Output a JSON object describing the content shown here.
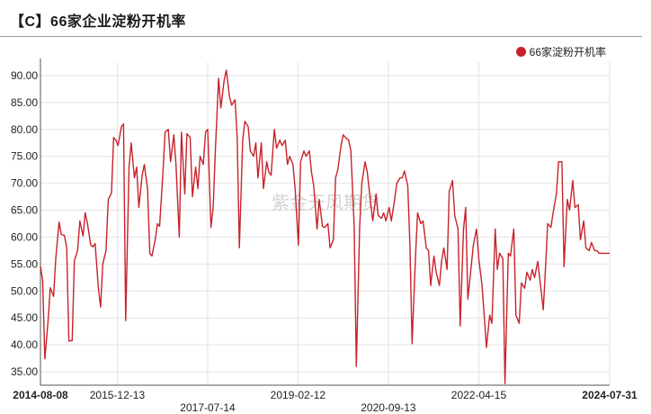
{
  "title": "【C】66家企业淀粉开机率",
  "watermark": "紫金天风期货",
  "colors": {
    "series": "#c8222a",
    "grid": "#e3e3e3",
    "axis": "#555555"
  },
  "chart_data": {
    "type": "line",
    "grid": true,
    "legend_position": "top-right",
    "ylim": [
      32.5,
      92.5
    ],
    "yticks": [
      "35.00",
      "40.00",
      "45.00",
      "50.00",
      "55.00",
      "60.00",
      "65.00",
      "70.00",
      "75.00",
      "80.00",
      "85.00",
      "90.00"
    ],
    "xrange": [
      "2014-08-08",
      "2024-07-31"
    ],
    "xticks": [
      {
        "label": "2014-08-08",
        "date": "2014-08-08",
        "row": 0,
        "bold": true
      },
      {
        "label": "2015-12-13",
        "date": "2015-12-13",
        "row": 0,
        "bold": false
      },
      {
        "label": "2017-07-14",
        "date": "2017-07-14",
        "row": 1,
        "bold": false
      },
      {
        "label": "2019-02-12",
        "date": "2019-02-12",
        "row": 0,
        "bold": false
      },
      {
        "label": "2020-09-13",
        "date": "2020-09-13",
        "row": 1,
        "bold": false
      },
      {
        "label": "2022-04-15",
        "date": "2022-04-15",
        "row": 0,
        "bold": false
      },
      {
        "label": "2024-07-31",
        "date": "2024-07-31",
        "row": 0,
        "bold": true
      }
    ],
    "series": [
      {
        "name": "66家淀粉开机率",
        "points": [
          [
            "2014-08-08",
            54.6
          ],
          [
            "2014-08-22",
            52.0
          ],
          [
            "2014-09-05",
            37.4
          ],
          [
            "2014-09-26",
            44.5
          ],
          [
            "2014-10-10",
            50.6
          ],
          [
            "2014-10-31",
            49.0
          ],
          [
            "2014-11-14",
            56.0
          ],
          [
            "2014-12-05",
            62.8
          ],
          [
            "2014-12-19",
            60.5
          ],
          [
            "2015-01-09",
            60.3
          ],
          [
            "2015-01-23",
            58.0
          ],
          [
            "2015-02-06",
            40.7
          ],
          [
            "2015-02-27",
            40.8
          ],
          [
            "2015-03-13",
            55.6
          ],
          [
            "2015-04-03",
            57.5
          ],
          [
            "2015-04-17",
            63.0
          ],
          [
            "2015-05-08",
            60.2
          ],
          [
            "2015-05-22",
            64.5
          ],
          [
            "2015-06-05",
            62.5
          ],
          [
            "2015-06-26",
            58.5
          ],
          [
            "2015-07-10",
            58.2
          ],
          [
            "2015-07-24",
            58.8
          ],
          [
            "2015-08-14",
            50.5
          ],
          [
            "2015-08-28",
            47.0
          ],
          [
            "2015-09-11",
            55.0
          ],
          [
            "2015-10-02",
            57.5
          ],
          [
            "2015-10-16",
            67.0
          ],
          [
            "2015-11-06",
            68.2
          ],
          [
            "2015-11-20",
            78.5
          ],
          [
            "2015-12-04",
            78.0
          ],
          [
            "2015-12-18",
            77.0
          ],
          [
            "2016-01-08",
            80.5
          ],
          [
            "2016-01-22",
            81.0
          ],
          [
            "2016-02-05",
            44.5
          ],
          [
            "2016-02-26",
            73.0
          ],
          [
            "2016-03-11",
            77.5
          ],
          [
            "2016-04-01",
            71.0
          ],
          [
            "2016-04-15",
            73.0
          ],
          [
            "2016-04-29",
            65.5
          ],
          [
            "2016-05-20",
            71.5
          ],
          [
            "2016-06-03",
            73.5
          ],
          [
            "2016-06-24",
            69.0
          ],
          [
            "2016-07-08",
            57.0
          ],
          [
            "2016-07-22",
            56.5
          ],
          [
            "2016-08-12",
            59.5
          ],
          [
            "2016-08-26",
            62.5
          ],
          [
            "2016-09-09",
            62.0
          ],
          [
            "2016-09-30",
            72.0
          ],
          [
            "2016-10-14",
            79.5
          ],
          [
            "2016-11-04",
            80.0
          ],
          [
            "2016-11-18",
            74.0
          ],
          [
            "2016-12-09",
            79.0
          ],
          [
            "2016-12-23",
            73.5
          ],
          [
            "2017-01-13",
            60.0
          ],
          [
            "2017-01-27",
            79.5
          ],
          [
            "2017-02-17",
            68.0
          ],
          [
            "2017-03-03",
            79.2
          ],
          [
            "2017-03-24",
            78.5
          ],
          [
            "2017-04-07",
            67.5
          ],
          [
            "2017-04-28",
            73.0
          ],
          [
            "2017-05-12",
            69.0
          ],
          [
            "2017-05-26",
            75.0
          ],
          [
            "2017-06-16",
            73.5
          ],
          [
            "2017-06-30",
            79.5
          ],
          [
            "2017-07-14",
            80.0
          ],
          [
            "2017-08-04",
            61.8
          ],
          [
            "2017-08-18",
            65.5
          ],
          [
            "2017-09-01",
            76.0
          ],
          [
            "2017-09-22",
            89.5
          ],
          [
            "2017-10-06",
            84.0
          ],
          [
            "2017-10-27",
            89.0
          ],
          [
            "2017-11-10",
            91.0
          ],
          [
            "2017-12-01",
            86.0
          ],
          [
            "2017-12-15",
            84.5
          ],
          [
            "2018-01-05",
            85.5
          ],
          [
            "2018-01-19",
            78.5
          ],
          [
            "2018-02-02",
            58.0
          ],
          [
            "2018-02-23",
            78.0
          ],
          [
            "2018-03-09",
            81.5
          ],
          [
            "2018-03-30",
            80.5
          ],
          [
            "2018-04-13",
            76.0
          ],
          [
            "2018-05-04",
            75.0
          ],
          [
            "2018-05-18",
            77.5
          ],
          [
            "2018-06-01",
            71.0
          ],
          [
            "2018-06-22",
            77.5
          ],
          [
            "2018-07-06",
            69.0
          ],
          [
            "2018-07-27",
            74.0
          ],
          [
            "2018-08-10",
            72.0
          ],
          [
            "2018-08-24",
            71.5
          ],
          [
            "2018-09-14",
            80.0
          ],
          [
            "2018-09-28",
            76.5
          ],
          [
            "2018-10-19",
            78.0
          ],
          [
            "2018-11-02",
            77.0
          ],
          [
            "2018-11-23",
            78.0
          ],
          [
            "2018-12-07",
            73.5
          ],
          [
            "2018-12-21",
            75.0
          ],
          [
            "2019-01-11",
            73.5
          ],
          [
            "2019-01-25",
            69.0
          ],
          [
            "2019-02-15",
            58.5
          ],
          [
            "2019-03-01",
            74.0
          ],
          [
            "2019-03-22",
            76.0
          ],
          [
            "2019-04-05",
            75.0
          ],
          [
            "2019-04-26",
            76.0
          ],
          [
            "2019-05-10",
            72.0
          ],
          [
            "2019-05-24",
            69.5
          ],
          [
            "2019-06-14",
            61.5
          ],
          [
            "2019-06-28",
            67.0
          ],
          [
            "2019-07-19",
            62.0
          ],
          [
            "2019-08-02",
            61.8
          ],
          [
            "2019-08-23",
            62.5
          ],
          [
            "2019-09-06",
            58.0
          ],
          [
            "2019-09-27",
            59.5
          ],
          [
            "2019-10-11",
            71.0
          ],
          [
            "2019-10-25",
            72.5
          ],
          [
            "2019-11-15",
            77.0
          ],
          [
            "2019-11-29",
            79.0
          ],
          [
            "2019-12-13",
            78.5
          ],
          [
            "2020-01-03",
            78.0
          ],
          [
            "2020-01-17",
            76.0
          ],
          [
            "2020-02-07",
            62.0
          ],
          [
            "2020-02-21",
            36.0
          ],
          [
            "2020-03-13",
            62.0
          ],
          [
            "2020-03-27",
            70.0
          ],
          [
            "2020-04-17",
            74.0
          ],
          [
            "2020-05-01",
            72.0
          ],
          [
            "2020-05-22",
            66.5
          ],
          [
            "2020-06-05",
            63.0
          ],
          [
            "2020-06-26",
            68.0
          ],
          [
            "2020-07-10",
            64.0
          ],
          [
            "2020-07-31",
            63.5
          ],
          [
            "2020-08-14",
            64.5
          ],
          [
            "2020-08-28",
            63.0
          ],
          [
            "2020-09-18",
            65.5
          ],
          [
            "2020-10-02",
            63.0
          ],
          [
            "2020-10-23",
            67.0
          ],
          [
            "2020-11-06",
            70.0
          ],
          [
            "2020-11-27",
            71.0
          ],
          [
            "2020-12-11",
            71.0
          ],
          [
            "2020-12-25",
            72.3
          ],
          [
            "2021-01-15",
            69.5
          ],
          [
            "2021-01-29",
            58.5
          ],
          [
            "2021-02-12",
            40.2
          ],
          [
            "2021-03-05",
            56.0
          ],
          [
            "2021-03-19",
            64.5
          ],
          [
            "2021-04-09",
            62.5
          ],
          [
            "2021-04-23",
            63.0
          ],
          [
            "2021-05-14",
            58.0
          ],
          [
            "2021-05-28",
            57.5
          ],
          [
            "2021-06-11",
            51.0
          ],
          [
            "2021-07-02",
            56.5
          ],
          [
            "2021-07-16",
            53.5
          ],
          [
            "2021-08-06",
            51.0
          ],
          [
            "2021-08-20",
            55.5
          ],
          [
            "2021-09-03",
            58.0
          ],
          [
            "2021-09-24",
            54.0
          ],
          [
            "2021-10-08",
            68.5
          ],
          [
            "2021-10-29",
            70.5
          ],
          [
            "2021-11-12",
            64.0
          ],
          [
            "2021-12-03",
            61.5
          ],
          [
            "2021-12-17",
            43.5
          ],
          [
            "2022-01-07",
            61.5
          ],
          [
            "2022-01-21",
            65.5
          ],
          [
            "2022-02-04",
            48.5
          ],
          [
            "2022-02-25",
            54.5
          ],
          [
            "2022-03-11",
            58.5
          ],
          [
            "2022-04-01",
            61.5
          ],
          [
            "2022-04-15",
            56.0
          ],
          [
            "2022-05-06",
            51.0
          ],
          [
            "2022-05-20",
            45.5
          ],
          [
            "2022-06-03",
            39.5
          ],
          [
            "2022-06-24",
            45.5
          ],
          [
            "2022-07-08",
            44.0
          ],
          [
            "2022-07-29",
            61.5
          ],
          [
            "2022-08-12",
            54.0
          ],
          [
            "2022-08-26",
            57.0
          ],
          [
            "2022-09-16",
            56.0
          ],
          [
            "2022-09-30",
            32.8
          ],
          [
            "2022-10-21",
            57.0
          ],
          [
            "2022-11-04",
            56.5
          ],
          [
            "2022-11-25",
            61.5
          ],
          [
            "2022-12-09",
            45.5
          ],
          [
            "2022-12-30",
            44.0
          ],
          [
            "2023-01-13",
            51.5
          ],
          [
            "2023-02-03",
            50.5
          ],
          [
            "2023-02-17",
            53.5
          ],
          [
            "2023-03-10",
            52.0
          ],
          [
            "2023-03-24",
            54.0
          ],
          [
            "2023-04-07",
            52.5
          ],
          [
            "2023-04-28",
            55.5
          ],
          [
            "2023-05-12",
            52.0
          ],
          [
            "2023-06-02",
            46.5
          ],
          [
            "2023-06-16",
            54.0
          ],
          [
            "2023-06-30",
            62.5
          ],
          [
            "2023-07-21",
            61.8
          ],
          [
            "2023-08-04",
            64.5
          ],
          [
            "2023-08-25",
            68.0
          ],
          [
            "2023-09-08",
            74.0
          ],
          [
            "2023-09-29",
            74.0
          ],
          [
            "2023-10-13",
            54.5
          ],
          [
            "2023-11-03",
            67.0
          ],
          [
            "2023-11-17",
            65.0
          ],
          [
            "2023-12-08",
            70.5
          ],
          [
            "2023-12-22",
            65.5
          ],
          [
            "2024-01-12",
            66.0
          ],
          [
            "2024-01-26",
            59.5
          ],
          [
            "2024-02-16",
            63.0
          ],
          [
            "2024-03-01",
            58.0
          ],
          [
            "2024-03-22",
            57.5
          ],
          [
            "2024-04-05",
            59.0
          ],
          [
            "2024-04-26",
            57.5
          ],
          [
            "2024-05-10",
            57.5
          ],
          [
            "2024-05-24",
            57.0
          ],
          [
            "2024-07-31",
            57.0
          ]
        ]
      }
    ]
  }
}
